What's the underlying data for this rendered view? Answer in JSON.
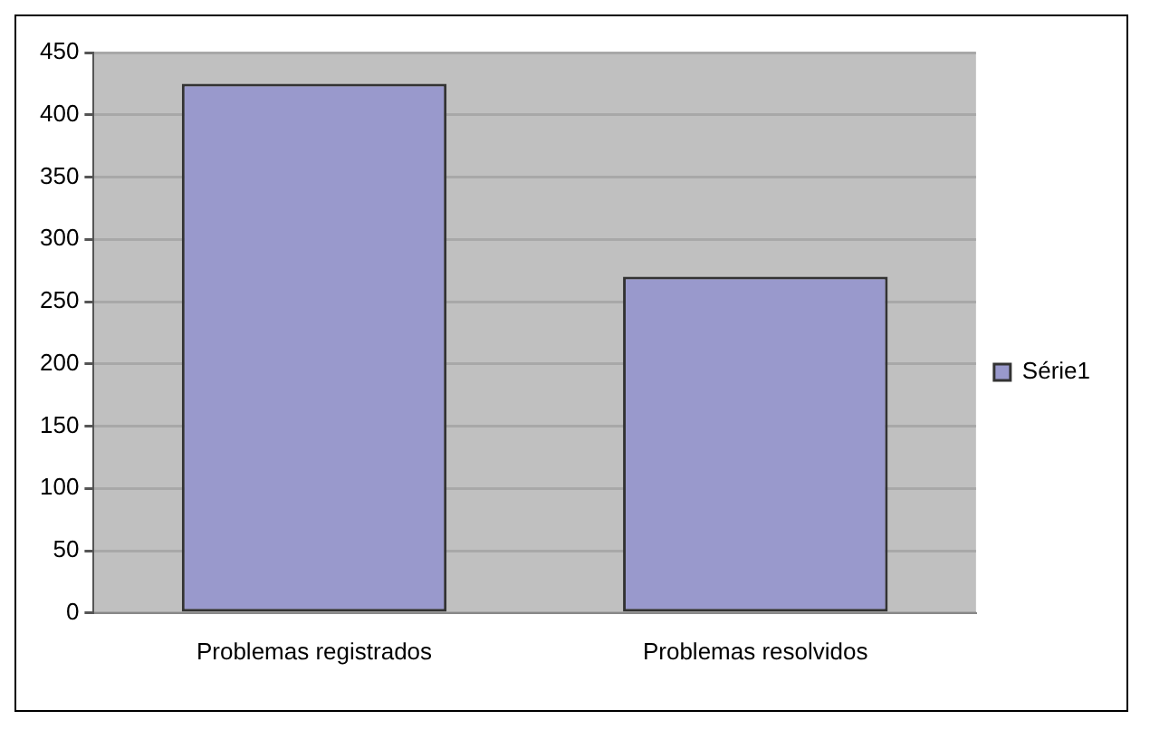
{
  "chart_data": {
    "type": "bar",
    "categories": [
      "Problemas registrados",
      "Problemas resolvidos"
    ],
    "series": [
      {
        "name": "Série1",
        "color": "#9999cc",
        "values": [
          425,
          270
        ]
      }
    ],
    "ylim": [
      0,
      450
    ],
    "yticks": [
      0,
      50,
      100,
      150,
      200,
      250,
      300,
      350,
      400,
      450
    ],
    "grid": "y",
    "legend": "right"
  }
}
